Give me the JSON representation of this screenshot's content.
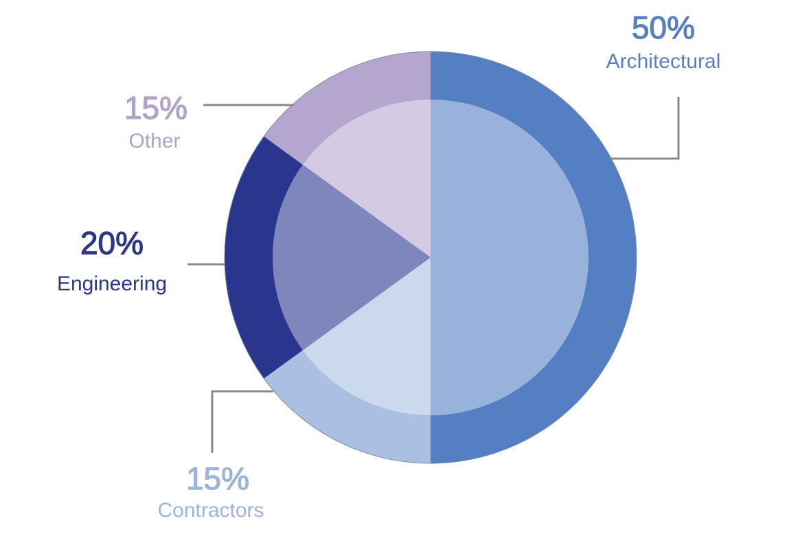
{
  "chart_data": {
    "type": "pie",
    "title": "",
    "slices": [
      {
        "label": "Architectural",
        "percent_label": "50%",
        "value": 50,
        "outer_color": "#5480C3",
        "inner_color": "#98B2DC",
        "label_color": "#5A7FBE"
      },
      {
        "label": "Contractors",
        "percent_label": "15%",
        "value": 15,
        "outer_color": "#AABFE1",
        "inner_color": "#CBD9EC",
        "label_color": "#9DB3D8"
      },
      {
        "label": "Engineering",
        "percent_label": "20%",
        "value": 20,
        "outer_color": "#2A368E",
        "inner_color": "#7F86BC",
        "label_color": "#2D3788"
      },
      {
        "label": "Other",
        "percent_label": "15%",
        "value": 15,
        "outer_color": "#B5A6CF",
        "inner_color": "#D4CAE3",
        "label_color": "#B0A3CB"
      }
    ],
    "legend": "none",
    "leader_line_color": "#888888"
  }
}
